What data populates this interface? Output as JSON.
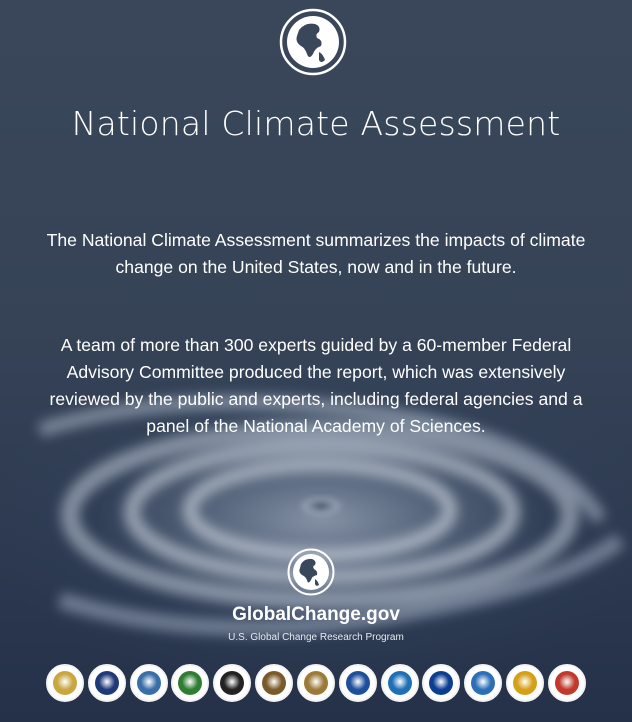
{
  "header": {
    "globe_icon": "globe-americas-icon",
    "title": "National Climate Assessment"
  },
  "intro": {
    "paragraph1": "The National Climate Assessment summarizes the impacts of climate change on the United States, now and in the future.",
    "paragraph2": "A team of more than 300 experts guided by a 60-member Federal Advisory Committee produced the report, which was extensively reviewed by the public and experts, including federal agencies and a panel of the National Academy of Sciences."
  },
  "footer": {
    "globe_icon": "globe-americas-icon",
    "brand_name": "GlobalChange.gov",
    "brand_subtitle": "U.S. Global Change Research Program"
  },
  "agency_seals": [
    {
      "icon": "usda-seal-icon",
      "color": "#c8a640"
    },
    {
      "icon": "commerce-seal-icon",
      "color": "#1f3a78"
    },
    {
      "icon": "defense-seal-icon",
      "color": "#3a6ea8"
    },
    {
      "icon": "energy-seal-icon",
      "color": "#2e7d32"
    },
    {
      "icon": "hhs-seal-icon",
      "color": "#222222"
    },
    {
      "icon": "interior-seal-icon",
      "color": "#7a5a2a"
    },
    {
      "icon": "state-seal-icon",
      "color": "#9c7b3a"
    },
    {
      "icon": "transportation-seal-icon",
      "color": "#1d4f9c"
    },
    {
      "icon": "epa-seal-icon",
      "color": "#1e6fb5"
    },
    {
      "icon": "nasa-seal-icon",
      "color": "#0b3d91"
    },
    {
      "icon": "nsf-seal-icon",
      "color": "#2d6fb6"
    },
    {
      "icon": "smithsonian-seal-icon",
      "color": "#d4a017"
    },
    {
      "icon": "usaid-seal-icon",
      "color": "#c0392b"
    }
  ]
}
